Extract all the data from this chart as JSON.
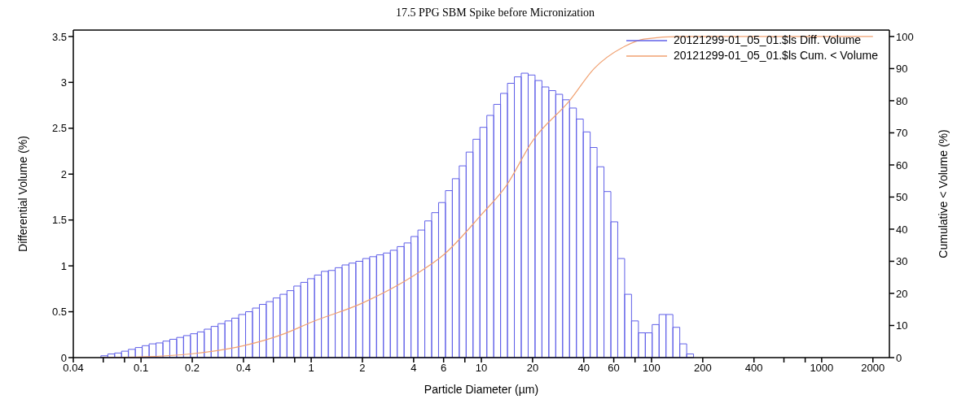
{
  "chart_data": {
    "type": "histogram",
    "title": "17.5 PPG SBM Spike before Micronization",
    "xlabel": "Particle Diameter (µm)",
    "ylabel": "Differential Volume (%)",
    "y2label": "Cumulative < Volume (%)",
    "log": "x",
    "legend": "top right",
    "marker": "none",
    "xlim": [
      0.04,
      2500
    ],
    "xticks": [
      0.04,
      {
        "value": 0.06,
        "label": null
      },
      {
        "value": 0.08,
        "label": null
      },
      0.1,
      0.2,
      0.4,
      {
        "value": 0.6,
        "label": null
      },
      {
        "value": 0.8,
        "label": null
      },
      1,
      2,
      4,
      6,
      {
        "value": 8,
        "label": null
      },
      10,
      20,
      40,
      60,
      {
        "value": 80,
        "label": null
      },
      100,
      200,
      400,
      {
        "value": 600,
        "label": null
      },
      {
        "value": 800,
        "label": null
      },
      1000,
      2000
    ],
    "ylim": [
      0,
      3.57
    ],
    "yticks": [
      0,
      0.5,
      1,
      1.5,
      2,
      2.5,
      3,
      3.5
    ],
    "y2lim": [
      0,
      102
    ],
    "y2ticks": [
      0,
      10,
      20,
      30,
      40,
      50,
      60,
      70,
      80,
      90,
      100
    ],
    "bins": [
      0.0581,
      0.0638,
      0.07,
      0.0768,
      0.0843,
      0.0926,
      0.1016,
      0.1116,
      0.1225,
      0.1345,
      0.1476,
      0.162,
      0.1778,
      0.1952,
      0.2143,
      0.2353,
      0.2583,
      0.2835,
      0.3112,
      0.3416,
      0.375,
      0.4116,
      0.452,
      0.4964,
      0.5445,
      0.5977,
      0.6563,
      0.7204,
      0.7907,
      0.8682,
      0.9528,
      1.046,
      1.148,
      1.261,
      1.384,
      1.519,
      1.667,
      1.83,
      2.009,
      2.206,
      2.421,
      2.658,
      2.918,
      3.203,
      3.516,
      3.86,
      4.237,
      4.652,
      5.106,
      5.605,
      6.153,
      6.754,
      7.414,
      8.139,
      8.934,
      9.808,
      10.77,
      11.82,
      12.97,
      14.24,
      15.63,
      17.16,
      18.84,
      20.68,
      22.7,
      24.92,
      27.36,
      30.03,
      32.97,
      36.19,
      39.72,
      43.61,
      47.87,
      52.55,
      57.68,
      63.32,
      69.51,
      76.3,
      83.76,
      91.95,
      100.9,
      110.8,
      121.6,
      133.5,
      146.6,
      160.9,
      176.6
    ],
    "series": [
      {
        "name": "20121299-01_05_01.$ls Diff. Volume",
        "color": "#6060e8",
        "values": [
          0.02,
          0.04,
          0.05,
          0.07,
          0.09,
          0.11,
          0.13,
          0.15,
          0.16,
          0.18,
          0.2,
          0.22,
          0.24,
          0.26,
          0.28,
          0.31,
          0.34,
          0.37,
          0.4,
          0.43,
          0.47,
          0.5,
          0.54,
          0.58,
          0.61,
          0.65,
          0.69,
          0.73,
          0.78,
          0.82,
          0.86,
          0.9,
          0.94,
          0.95,
          0.98,
          1.01,
          1.03,
          1.05,
          1.08,
          1.1,
          1.12,
          1.14,
          1.17,
          1.21,
          1.25,
          1.32,
          1.39,
          1.49,
          1.58,
          1.69,
          1.82,
          1.95,
          2.09,
          2.24,
          2.38,
          2.51,
          2.64,
          2.76,
          2.88,
          2.99,
          3.06,
          3.1,
          3.08,
          3.02,
          2.95,
          2.91,
          2.87,
          2.81,
          2.72,
          2.6,
          2.46,
          2.29,
          2.08,
          1.81,
          1.48,
          1.08,
          0.69,
          0.4,
          0.27,
          0.27,
          0.36,
          0.47,
          0.47,
          0.33,
          0.15,
          0.04
        ]
      },
      {
        "name": "20121299-01_05_01.$ls Cum. < Volume",
        "type": "line",
        "axis": "y2",
        "color": "#f0a070",
        "x": [
          0.058,
          0.1,
          0.2,
          0.4,
          0.7,
          1,
          2,
          4,
          6,
          10,
          14,
          20,
          33,
          46,
          70,
          90,
          150,
          2000
        ],
        "values": [
          0,
          0.2,
          1.2,
          3.7,
          7.5,
          11,
          17,
          25.5,
          32,
          44.5,
          53.5,
          67.5,
          80,
          90,
          97,
          99.2,
          100,
          100
        ]
      }
    ]
  }
}
